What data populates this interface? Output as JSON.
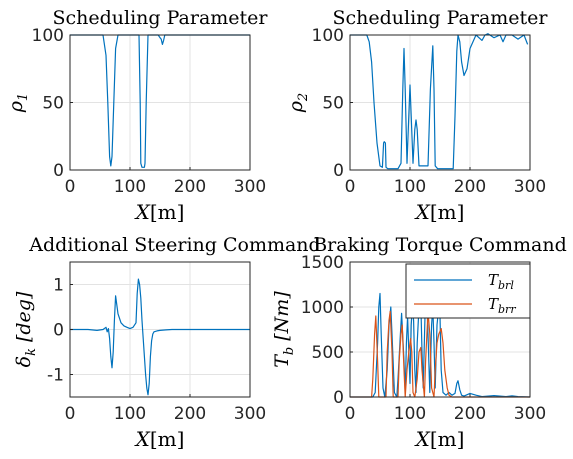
{
  "chart_data": [
    {
      "id": "p1",
      "type": "line",
      "title": "Scheduling Parameter",
      "xlabel_var": "X",
      "xlabel_unit": "[m]",
      "ylabel_var": "ρ",
      "ylabel_sub": "1",
      "xlim": [
        0,
        300
      ],
      "ylim": [
        0,
        100
      ],
      "xticks": [
        0,
        100,
        200,
        300
      ],
      "yticks": [
        0,
        50,
        100
      ],
      "ytick_labels": [
        "0",
        "50",
        "100"
      ],
      "grid": true,
      "series": [
        {
          "color": "#0072BD",
          "x": [
            0,
            55,
            60,
            63,
            66,
            68,
            70,
            73,
            76,
            80,
            115,
            117,
            118,
            120,
            122,
            124,
            125,
            127,
            130,
            147,
            150,
            152,
            154,
            156,
            158,
            160,
            300
          ],
          "y": [
            100,
            100,
            85,
            50,
            10,
            3,
            10,
            50,
            90,
            100,
            100,
            50,
            5,
            2,
            2,
            2,
            5,
            50,
            100,
            100,
            98,
            97,
            93,
            96,
            100,
            100,
            100
          ]
        }
      ]
    },
    {
      "id": "p2",
      "type": "line",
      "title": "Scheduling Parameter",
      "xlabel_var": "X",
      "xlabel_unit": "[m]",
      "ylabel_var": "ρ",
      "ylabel_sub": "2",
      "xlim": [
        0,
        300
      ],
      "ylim": [
        0,
        100
      ],
      "xticks": [
        0,
        100,
        200,
        300
      ],
      "yticks": [
        0,
        50,
        100
      ],
      "ytick_labels": [
        "0",
        "50",
        "100"
      ],
      "grid": true,
      "series": [
        {
          "color": "#0072BD",
          "x": [
            0,
            28,
            32,
            36,
            40,
            45,
            50,
            54,
            56,
            57,
            59,
            60,
            63,
            70,
            80,
            85,
            88,
            90,
            92,
            95,
            98,
            100,
            102,
            105,
            108,
            110,
            112,
            115,
            130,
            134,
            138,
            140,
            142,
            146,
            172,
            175,
            178,
            180,
            183,
            186,
            190,
            195,
            200,
            210,
            220,
            225,
            230,
            240,
            250,
            255,
            260,
            270,
            280,
            290,
            296
          ],
          "y": [
            100,
            100,
            95,
            80,
            50,
            20,
            3,
            2,
            20,
            21,
            20,
            2,
            1,
            1,
            1,
            5,
            60,
            90,
            60,
            5,
            40,
            63,
            40,
            5,
            30,
            37,
            30,
            3,
            3,
            60,
            92,
            60,
            3,
            1,
            1,
            40,
            88,
            100,
            95,
            80,
            70,
            75,
            90,
            100,
            96,
            100,
            101,
            98,
            100,
            95,
            100,
            100,
            97,
            100,
            93
          ]
        }
      ]
    },
    {
      "id": "p3",
      "type": "line",
      "title": "Additional Steering Command",
      "xlabel_var": "X",
      "xlabel_unit": "[m]",
      "ylabel_var": "δ",
      "ylabel_sub": "k",
      "ylabel_unit": "[deg]",
      "xlim": [
        0,
        300
      ],
      "ylim": [
        -1.5,
        1.5
      ],
      "xticks": [
        0,
        100,
        200,
        300
      ],
      "yticks": [
        -1,
        0,
        1
      ],
      "ytick_labels": [
        "-1",
        "0",
        "1"
      ],
      "grid": true,
      "series": [
        {
          "color": "#0072BD",
          "x": [
            0,
            30,
            45,
            55,
            60,
            62,
            64,
            66,
            68,
            70,
            72,
            74,
            76,
            78,
            80,
            85,
            90,
            95,
            100,
            105,
            110,
            112,
            114,
            116,
            118,
            120,
            122,
            124,
            126,
            128,
            130,
            132,
            134,
            136,
            138,
            140,
            145,
            150,
            160,
            170,
            200,
            250,
            300
          ],
          "y": [
            0,
            0,
            -0.02,
            0,
            0.05,
            -0.05,
            0.02,
            -0.2,
            -0.6,
            -0.85,
            -0.5,
            0.2,
            0.75,
            0.55,
            0.35,
            0.15,
            0.08,
            0.05,
            0.02,
            0.05,
            0.15,
            0.8,
            1.12,
            1.0,
            0.7,
            0.2,
            -0.2,
            -0.6,
            -1.0,
            -1.3,
            -1.45,
            -1.2,
            -0.6,
            -0.25,
            -0.1,
            -0.05,
            -0.03,
            -0.02,
            -0.01,
            0,
            0,
            0,
            0
          ]
        }
      ]
    },
    {
      "id": "p4",
      "type": "line",
      "title": "Braking Torque Command",
      "xlabel_var": "X",
      "xlabel_unit": "[m]",
      "ylabel_var": "T",
      "ylabel_sub": "b",
      "ylabel_unit": "[Nm]",
      "xlim": [
        0,
        300
      ],
      "ylim": [
        0,
        1500
      ],
      "xticks": [
        0,
        100,
        200,
        300
      ],
      "yticks": [
        0,
        500,
        1000,
        1500
      ],
      "ytick_labels": [
        "0",
        "500",
        "1000",
        "1500"
      ],
      "grid": true,
      "legend_position": "top-right",
      "series": [
        {
          "name": "T_brl",
          "legend_var": "T",
          "legend_sub": "brl",
          "color": "#0072BD",
          "x": [
            0,
            38,
            42,
            46,
            48,
            50,
            52,
            55,
            58,
            62,
            65,
            68,
            70,
            74,
            78,
            80,
            84,
            86,
            90,
            92,
            94,
            96,
            98,
            100,
            102,
            104,
            106,
            108,
            110,
            112,
            115,
            118,
            120,
            122,
            125,
            128,
            130,
            133,
            136,
            138,
            140,
            142,
            145,
            148,
            150,
            152,
            155,
            160,
            165,
            170,
            175,
            178,
            180,
            183,
            186,
            190,
            200,
            210,
            220,
            240,
            260,
            270,
            280,
            300
          ],
          "y": [
            0,
            0,
            50,
            600,
            1000,
            1150,
            700,
            100,
            0,
            300,
            800,
            1000,
            700,
            50,
            0,
            200,
            700,
            930,
            400,
            50,
            600,
            900,
            500,
            150,
            800,
            1000,
            850,
            300,
            50,
            600,
            1000,
            1060,
            500,
            100,
            900,
            1060,
            700,
            50,
            800,
            1000,
            600,
            100,
            800,
            1000,
            900,
            300,
            50,
            20,
            50,
            20,
            40,
            150,
            180,
            80,
            20,
            10,
            40,
            20,
            5,
            15,
            5,
            12,
            5,
            0
          ]
        },
        {
          "name": "T_brr",
          "legend_var": "T",
          "legend_sub": "brr",
          "color": "#D95319",
          "x": [
            0,
            36,
            38,
            41,
            43,
            46,
            48,
            60,
            62,
            65,
            67,
            70,
            72,
            80,
            82,
            85,
            87,
            90,
            92,
            95,
            98,
            101,
            103,
            105,
            108,
            112,
            115,
            118,
            120,
            124,
            126,
            130,
            133,
            136,
            140,
            142,
            145,
            148,
            152,
            155,
            158,
            162,
            165,
            170,
            300
          ],
          "y": [
            0,
            0,
            200,
            700,
            900,
            400,
            0,
            0,
            500,
            850,
            950,
            500,
            0,
            0,
            400,
            700,
            800,
            300,
            0,
            300,
            500,
            650,
            500,
            50,
            0,
            200,
            500,
            550,
            300,
            0,
            400,
            950,
            700,
            100,
            0,
            300,
            600,
            700,
            760,
            600,
            300,
            100,
            20,
            0,
            0
          ]
        }
      ]
    }
  ]
}
